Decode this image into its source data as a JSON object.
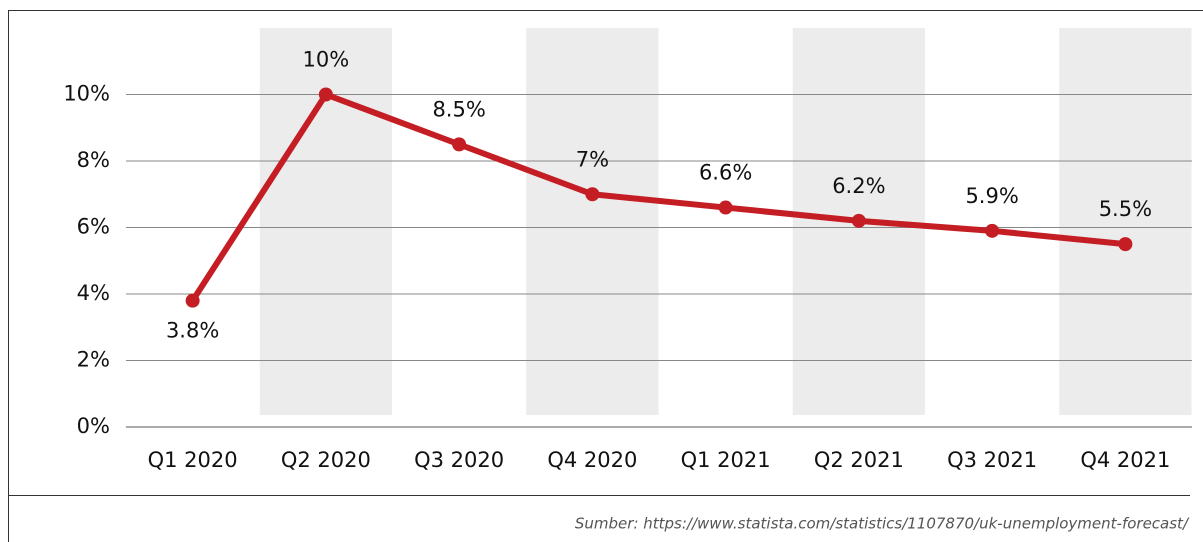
{
  "chart_data": {
    "type": "line",
    "categories": [
      "Q1 2020",
      "Q2 2020",
      "Q3 2020",
      "Q4 2020",
      "Q1 2021",
      "Q2 2021",
      "Q3 2021",
      "Q4 2021"
    ],
    "series": [
      {
        "color": "#c41e24",
        "values": [
          3.8,
          10,
          8.5,
          7,
          6.6,
          6.2,
          5.9,
          5.5
        ],
        "value_labels": [
          "3.8%",
          "10%",
          "8.5%",
          "7%",
          "6.6%",
          "6.2%",
          "5.9%",
          "5.5%"
        ]
      }
    ],
    "ylim": [
      0,
      12
    ],
    "yticks": [
      {
        "value": 0,
        "label": "0%"
      },
      {
        "value": 2,
        "label": "2%"
      },
      {
        "value": 4,
        "label": "4%"
      },
      {
        "value": 6,
        "label": "6%"
      },
      {
        "value": 8,
        "label": "8%"
      },
      {
        "value": 10,
        "label": "10%"
      }
    ],
    "grid": true,
    "source": "Sumber: https://www.statista.com/statistics/1107870/uk-unemployment-forecast/"
  }
}
